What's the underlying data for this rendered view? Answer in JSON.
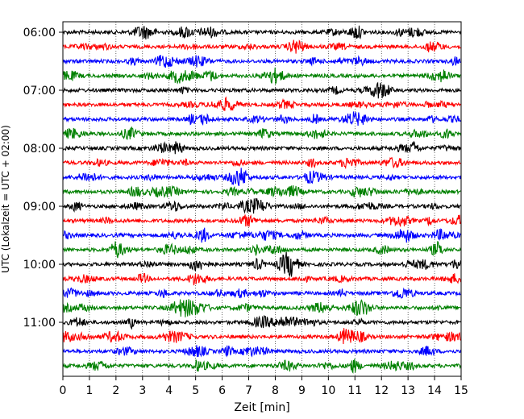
{
  "chart_data": {
    "type": "line",
    "title": "",
    "xlabel": "Zeit  [min]",
    "ylabel": "UTC (Lokalzeit = UTC + 02:00)",
    "xlim": [
      0,
      15
    ],
    "x_ticks": [
      "0",
      "1",
      "2",
      "3",
      "4",
      "5",
      "6",
      "7",
      "8",
      "9",
      "10",
      "11",
      "12",
      "13",
      "14",
      "15"
    ],
    "y_ticks": [
      "06:00",
      "07:00",
      "08:00",
      "09:00",
      "10:00",
      "11:00"
    ],
    "trace_interval_min": 15,
    "grid": "vertical dotted at each minute",
    "colors": [
      "#000000",
      "#ff0000",
      "#0000ff",
      "#008000"
    ],
    "traces": [
      {
        "start": "06:00",
        "color": "#000000"
      },
      {
        "start": "06:15",
        "color": "#ff0000"
      },
      {
        "start": "06:30",
        "color": "#0000ff"
      },
      {
        "start": "06:45",
        "color": "#008000"
      },
      {
        "start": "07:00",
        "color": "#000000"
      },
      {
        "start": "07:15",
        "color": "#ff0000"
      },
      {
        "start": "07:30",
        "color": "#0000ff"
      },
      {
        "start": "07:45",
        "color": "#008000"
      },
      {
        "start": "08:00",
        "color": "#000000"
      },
      {
        "start": "08:15",
        "color": "#ff0000"
      },
      {
        "start": "08:30",
        "color": "#0000ff"
      },
      {
        "start": "08:45",
        "color": "#008000"
      },
      {
        "start": "09:00",
        "color": "#000000"
      },
      {
        "start": "09:15",
        "color": "#ff0000"
      },
      {
        "start": "09:30",
        "color": "#0000ff"
      },
      {
        "start": "09:45",
        "color": "#008000"
      },
      {
        "start": "10:00",
        "color": "#000000"
      },
      {
        "start": "10:15",
        "color": "#ff0000"
      },
      {
        "start": "10:30",
        "color": "#0000ff"
      },
      {
        "start": "10:45",
        "color": "#008000"
      },
      {
        "start": "11:00",
        "color": "#000000"
      },
      {
        "start": "11:15",
        "color": "#ff0000"
      },
      {
        "start": "11:30",
        "color": "#0000ff"
      },
      {
        "start": "11:45",
        "color": "#008000"
      }
    ]
  }
}
